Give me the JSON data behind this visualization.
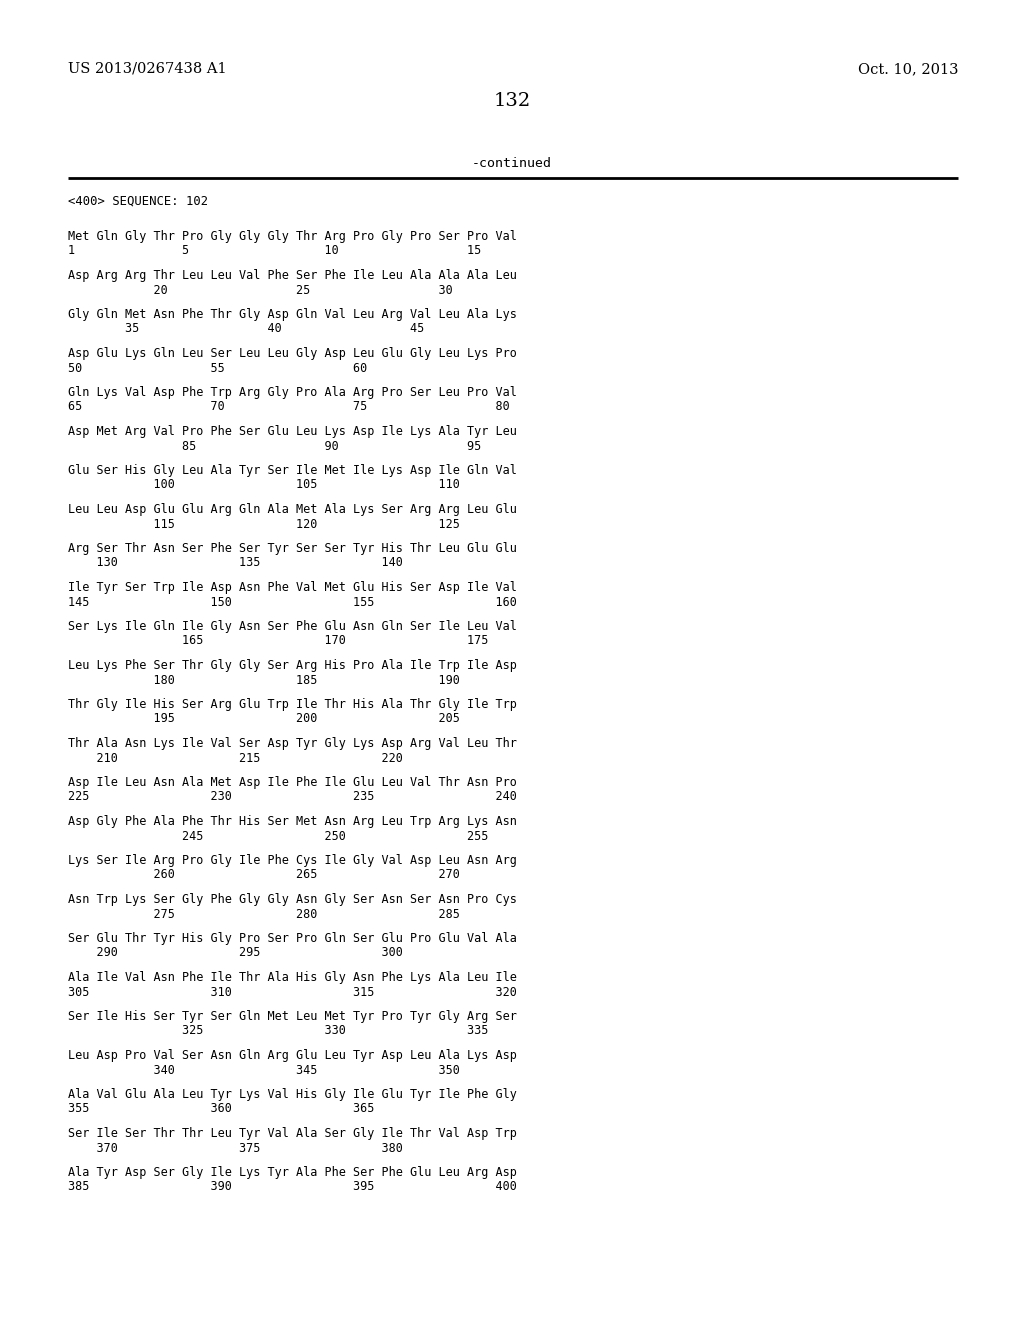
{
  "header_left": "US 2013/0267438 A1",
  "header_right": "Oct. 10, 2013",
  "page_number": "132",
  "continued_text": "-continued",
  "sequence_header": "<400> SEQUENCE: 102",
  "background_color": "#ffffff",
  "text_color": "#000000",
  "sequence_lines": [
    "Met Gln Gly Thr Pro Gly Gly Gly Thr Arg Pro Gly Pro Ser Pro Val",
    "1               5                   10                  15",
    "",
    "Asp Arg Arg Thr Leu Leu Val Phe Ser Phe Ile Leu Ala Ala Ala Leu",
    "            20                  25                  30",
    "",
    "Gly Gln Met Asn Phe Thr Gly Asp Gln Val Leu Arg Val Leu Ala Lys",
    "        35                  40                  45",
    "",
    "Asp Glu Lys Gln Leu Ser Leu Leu Gly Asp Leu Glu Gly Leu Lys Pro",
    "50                  55                  60",
    "",
    "Gln Lys Val Asp Phe Trp Arg Gly Pro Ala Arg Pro Ser Leu Pro Val",
    "65                  70                  75                  80",
    "",
    "Asp Met Arg Val Pro Phe Ser Glu Leu Lys Asp Ile Lys Ala Tyr Leu",
    "                85                  90                  95",
    "",
    "Glu Ser His Gly Leu Ala Tyr Ser Ile Met Ile Lys Asp Ile Gln Val",
    "            100                 105                 110",
    "",
    "Leu Leu Asp Glu Glu Arg Gln Ala Met Ala Lys Ser Arg Arg Leu Glu",
    "            115                 120                 125",
    "",
    "Arg Ser Thr Asn Ser Phe Ser Tyr Ser Ser Tyr His Thr Leu Glu Glu",
    "    130                 135                 140",
    "",
    "Ile Tyr Ser Trp Ile Asp Asn Phe Val Met Glu His Ser Asp Ile Val",
    "145                 150                 155                 160",
    "",
    "Ser Lys Ile Gln Ile Gly Asn Ser Phe Glu Asn Gln Ser Ile Leu Val",
    "                165                 170                 175",
    "",
    "Leu Lys Phe Ser Thr Gly Gly Ser Arg His Pro Ala Ile Trp Ile Asp",
    "            180                 185                 190",
    "",
    "Thr Gly Ile His Ser Arg Glu Trp Ile Thr His Ala Thr Gly Ile Trp",
    "            195                 200                 205",
    "",
    "Thr Ala Asn Lys Ile Val Ser Asp Tyr Gly Lys Asp Arg Val Leu Thr",
    "    210                 215                 220",
    "",
    "Asp Ile Leu Asn Ala Met Asp Ile Phe Ile Glu Leu Val Thr Asn Pro",
    "225                 230                 235                 240",
    "",
    "Asp Gly Phe Ala Phe Thr His Ser Met Asn Arg Leu Trp Arg Lys Asn",
    "                245                 250                 255",
    "",
    "Lys Ser Ile Arg Pro Gly Ile Phe Cys Ile Gly Val Asp Leu Asn Arg",
    "            260                 265                 270",
    "",
    "Asn Trp Lys Ser Gly Phe Gly Gly Asn Gly Ser Asn Ser Asn Pro Cys",
    "            275                 280                 285",
    "",
    "Ser Glu Thr Tyr His Gly Pro Ser Pro Gln Ser Glu Pro Glu Val Ala",
    "    290                 295                 300",
    "",
    "Ala Ile Val Asn Phe Ile Thr Ala His Gly Asn Phe Lys Ala Leu Ile",
    "305                 310                 315                 320",
    "",
    "Ser Ile His Ser Tyr Ser Gln Met Leu Met Tyr Pro Tyr Gly Arg Ser",
    "                325                 330                 335",
    "",
    "Leu Asp Pro Val Ser Asn Gln Arg Glu Leu Tyr Asp Leu Ala Lys Asp",
    "            340                 345                 350",
    "",
    "Ala Val Glu Ala Leu Tyr Lys Val His Gly Ile Glu Tyr Ile Phe Gly",
    "355                 360                 365",
    "",
    "Ser Ile Ser Thr Thr Leu Tyr Val Ala Ser Gly Ile Thr Val Asp Trp",
    "    370                 375                 380",
    "",
    "Ala Tyr Asp Ser Gly Ile Lys Tyr Ala Phe Ser Phe Glu Leu Arg Asp",
    "385                 390                 395                 400"
  ]
}
